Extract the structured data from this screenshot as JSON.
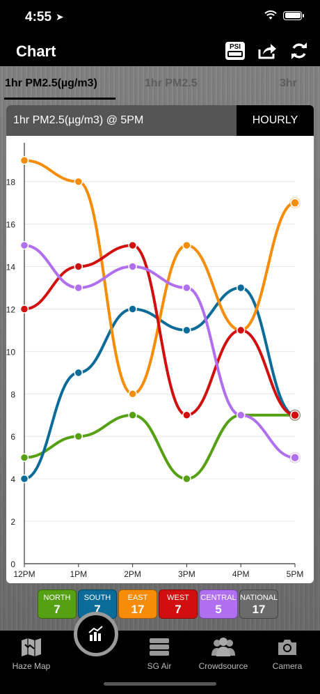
{
  "status": {
    "time": "4:55",
    "location_icon": "location-arrow-icon",
    "wifi_icon": "wifi-icon",
    "battery_icon": "battery-icon"
  },
  "nav": {
    "title": "Chart",
    "psi_label": "PSI",
    "share_icon": "share-icon",
    "refresh_icon": "refresh-icon"
  },
  "tabs": [
    {
      "label": "1hr PM2.5(µg/m3)",
      "active": true
    },
    {
      "label": "1hr PM2.5",
      "active": false
    },
    {
      "label": "3hr",
      "active": false
    }
  ],
  "card": {
    "title": "1hr PM2.5(µg/m3) @ 5PM",
    "button": "HOURLY"
  },
  "chart_data": {
    "type": "line",
    "title": "",
    "xlabel": "",
    "ylabel": "",
    "categories": [
      "12PM",
      "1PM",
      "2PM",
      "3PM",
      "4PM",
      "5PM"
    ],
    "ylim": [
      0,
      19.5
    ],
    "yticks": [
      0,
      2,
      4,
      6,
      8,
      10,
      12,
      14,
      16,
      18
    ],
    "grid": true,
    "smooth": true,
    "series": [
      {
        "name": "NORTH",
        "color": "#55a013",
        "values": [
          5,
          6,
          7,
          4,
          7,
          7
        ]
      },
      {
        "name": "SOUTH",
        "color": "#0c6c99",
        "values": [
          4,
          9,
          12,
          11,
          13,
          7
        ]
      },
      {
        "name": "EAST",
        "color": "#f68c07",
        "values": [
          19,
          18,
          8,
          15,
          11,
          17
        ]
      },
      {
        "name": "WEST",
        "color": "#d20f0f",
        "values": [
          12,
          14,
          15,
          7,
          11,
          7
        ]
      },
      {
        "name": "CENTRAL",
        "color": "#b06fef",
        "values": [
          15,
          13,
          14,
          13,
          7,
          5
        ]
      }
    ]
  },
  "legend": [
    {
      "name": "NORTH",
      "value": "7",
      "color": "#55a013"
    },
    {
      "name": "SOUTH",
      "value": "7",
      "color": "#0c6c99"
    },
    {
      "name": "EAST",
      "value": "17",
      "color": "#f68c07"
    },
    {
      "name": "WEST",
      "value": "7",
      "color": "#d20f0f"
    },
    {
      "name": "CENTRAL",
      "value": "5",
      "color": "#b06fef"
    },
    {
      "name": "NATIONAL",
      "value": "17",
      "color": "#6b6b6b"
    }
  ],
  "tabbar": {
    "items": [
      {
        "label": "Haze Map",
        "icon": "map-icon"
      },
      {
        "label": "",
        "icon": "chart-icon"
      },
      {
        "label": "SG Air",
        "icon": "list-icon"
      },
      {
        "label": "Crowdsource",
        "icon": "group-icon"
      },
      {
        "label": "Camera",
        "icon": "camera-icon"
      }
    ]
  }
}
